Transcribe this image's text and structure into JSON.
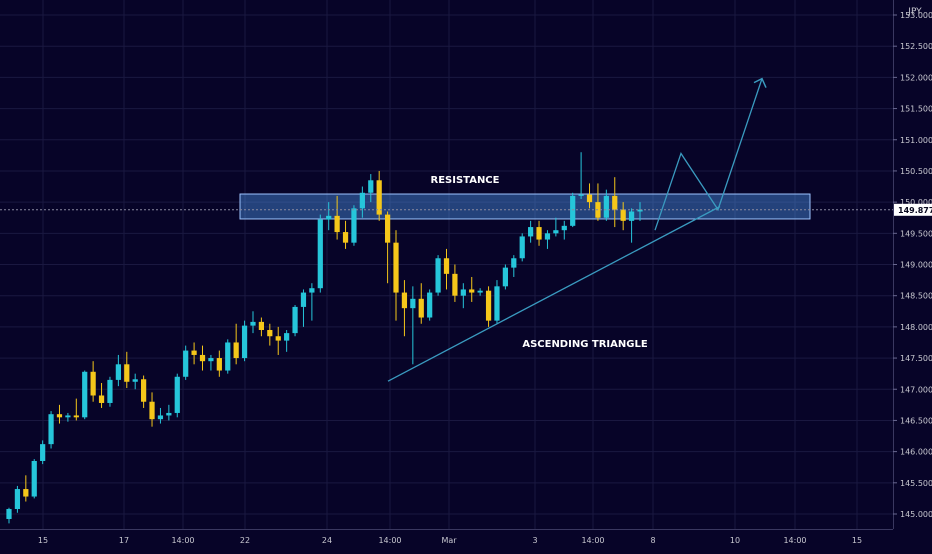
{
  "chart_data": {
    "type": "candlestick",
    "title": "",
    "currency_label": "JPY",
    "last_price": "149.877",
    "y_axis": {
      "ylim": [
        144.8,
        153.2
      ],
      "ticks": [
        "145.000",
        "145.500",
        "146.000",
        "146.500",
        "147.000",
        "147.500",
        "148.000",
        "148.500",
        "149.000",
        "149.500",
        "150.000",
        "150.500",
        "151.000",
        "151.500",
        "152.000",
        "152.500",
        "153.000"
      ]
    },
    "x_axis": {
      "ticks": [
        "15",
        "17",
        "14:00",
        "22",
        "24",
        "14:00",
        "Mar",
        "3",
        "14:00",
        "8",
        "10",
        "14:00",
        "15"
      ]
    },
    "annotations": {
      "resistance_label": "RESISTANCE",
      "triangle_label": "ASCENDING TRIANGLE"
    },
    "resistance_zone": {
      "low": 149.73,
      "high": 150.13
    },
    "triangle_support": {
      "from": 147.13,
      "to": 149.93
    },
    "projection": [
      149.55,
      150.78,
      149.88,
      151.98
    ],
    "colors": {
      "background": "#070428",
      "bull": "#26c6da",
      "bear": "#f5c71a",
      "zone": "#4a8fe0",
      "line": "#3a9bc0",
      "grid": "#1a1840"
    },
    "candles": [
      [
        144.92,
        145.1,
        144.85,
        145.08
      ],
      [
        145.08,
        145.45,
        145.02,
        145.4
      ],
      [
        145.4,
        145.62,
        145.2,
        145.28
      ],
      [
        145.28,
        145.88,
        145.25,
        145.85
      ],
      [
        145.85,
        146.18,
        145.8,
        146.12
      ],
      [
        146.12,
        146.65,
        146.05,
        146.6
      ],
      [
        146.6,
        146.75,
        146.45,
        146.55
      ],
      [
        146.55,
        146.62,
        146.48,
        146.58
      ],
      [
        146.58,
        146.85,
        146.5,
        146.55
      ],
      [
        146.55,
        147.3,
        146.52,
        147.28
      ],
      [
        147.28,
        147.45,
        146.8,
        146.9
      ],
      [
        146.9,
        147.1,
        146.7,
        146.78
      ],
      [
        146.78,
        147.2,
        146.72,
        147.15
      ],
      [
        147.15,
        147.55,
        147.05,
        147.4
      ],
      [
        147.4,
        147.6,
        147.02,
        147.12
      ],
      [
        147.12,
        147.25,
        147.0,
        147.16
      ],
      [
        147.16,
        147.22,
        146.7,
        146.8
      ],
      [
        146.8,
        146.95,
        146.4,
        146.52
      ],
      [
        146.52,
        146.7,
        146.45,
        146.58
      ],
      [
        146.58,
        146.75,
        146.5,
        146.62
      ],
      [
        146.62,
        147.25,
        146.55,
        147.2
      ],
      [
        147.2,
        147.7,
        147.15,
        147.62
      ],
      [
        147.62,
        147.75,
        147.4,
        147.55
      ],
      [
        147.55,
        147.7,
        147.3,
        147.45
      ],
      [
        147.45,
        147.55,
        147.3,
        147.5
      ],
      [
        147.5,
        147.62,
        147.2,
        147.3
      ],
      [
        147.3,
        147.8,
        147.25,
        147.75
      ],
      [
        147.75,
        148.05,
        147.4,
        147.5
      ],
      [
        147.5,
        148.1,
        147.45,
        148.02
      ],
      [
        148.02,
        148.25,
        147.9,
        148.08
      ],
      [
        148.08,
        148.15,
        147.85,
        147.95
      ],
      [
        147.95,
        148.05,
        147.7,
        147.85
      ],
      [
        147.85,
        148.0,
        147.55,
        147.78
      ],
      [
        147.78,
        147.95,
        147.6,
        147.9
      ],
      [
        147.9,
        148.35,
        147.85,
        148.32
      ],
      [
        148.32,
        148.6,
        148.0,
        148.55
      ],
      [
        148.55,
        148.7,
        148.1,
        148.62
      ],
      [
        148.62,
        149.8,
        148.55,
        149.72
      ],
      [
        149.72,
        150.0,
        149.55,
        149.78
      ],
      [
        149.78,
        150.1,
        149.4,
        149.52
      ],
      [
        149.52,
        149.7,
        149.25,
        149.35
      ],
      [
        149.35,
        149.95,
        149.3,
        149.9
      ],
      [
        149.9,
        150.25,
        149.75,
        150.15
      ],
      [
        150.15,
        150.45,
        150.0,
        150.35
      ],
      [
        150.35,
        150.5,
        149.7,
        149.8
      ],
      [
        149.8,
        149.85,
        148.7,
        149.35
      ],
      [
        149.35,
        149.55,
        148.1,
        148.55
      ],
      [
        148.55,
        148.75,
        147.85,
        148.3
      ],
      [
        148.3,
        148.65,
        147.4,
        148.45
      ],
      [
        148.45,
        148.7,
        148.05,
        148.15
      ],
      [
        148.15,
        148.6,
        148.1,
        148.55
      ],
      [
        148.55,
        149.15,
        148.5,
        149.1
      ],
      [
        149.1,
        149.25,
        148.6,
        148.85
      ],
      [
        148.85,
        149.0,
        148.4,
        148.5
      ],
      [
        148.5,
        148.7,
        148.3,
        148.6
      ],
      [
        148.6,
        148.8,
        148.4,
        148.55
      ],
      [
        148.55,
        148.62,
        148.5,
        148.58
      ],
      [
        148.58,
        148.65,
        148.0,
        148.1
      ],
      [
        148.1,
        148.75,
        148.05,
        148.65
      ],
      [
        148.65,
        149.0,
        148.6,
        148.95
      ],
      [
        148.95,
        149.15,
        148.8,
        149.1
      ],
      [
        149.1,
        149.5,
        149.05,
        149.45
      ],
      [
        149.45,
        149.7,
        149.35,
        149.6
      ],
      [
        149.6,
        149.7,
        149.3,
        149.4
      ],
      [
        149.4,
        149.55,
        149.25,
        149.5
      ],
      [
        149.5,
        149.75,
        149.45,
        149.55
      ],
      [
        149.55,
        149.7,
        149.4,
        149.62
      ],
      [
        149.62,
        150.15,
        149.6,
        150.1
      ],
      [
        150.1,
        150.8,
        150.05,
        150.12
      ],
      [
        150.12,
        150.3,
        149.9,
        150.0
      ],
      [
        150.0,
        150.3,
        149.7,
        149.75
      ],
      [
        149.75,
        150.2,
        149.7,
        150.1
      ],
      [
        150.1,
        150.4,
        149.6,
        149.88
      ],
      [
        149.88,
        150.0,
        149.55,
        149.7
      ],
      [
        149.7,
        149.9,
        149.35,
        149.85
      ],
      [
        149.85,
        150.0,
        149.7,
        149.88
      ]
    ]
  }
}
